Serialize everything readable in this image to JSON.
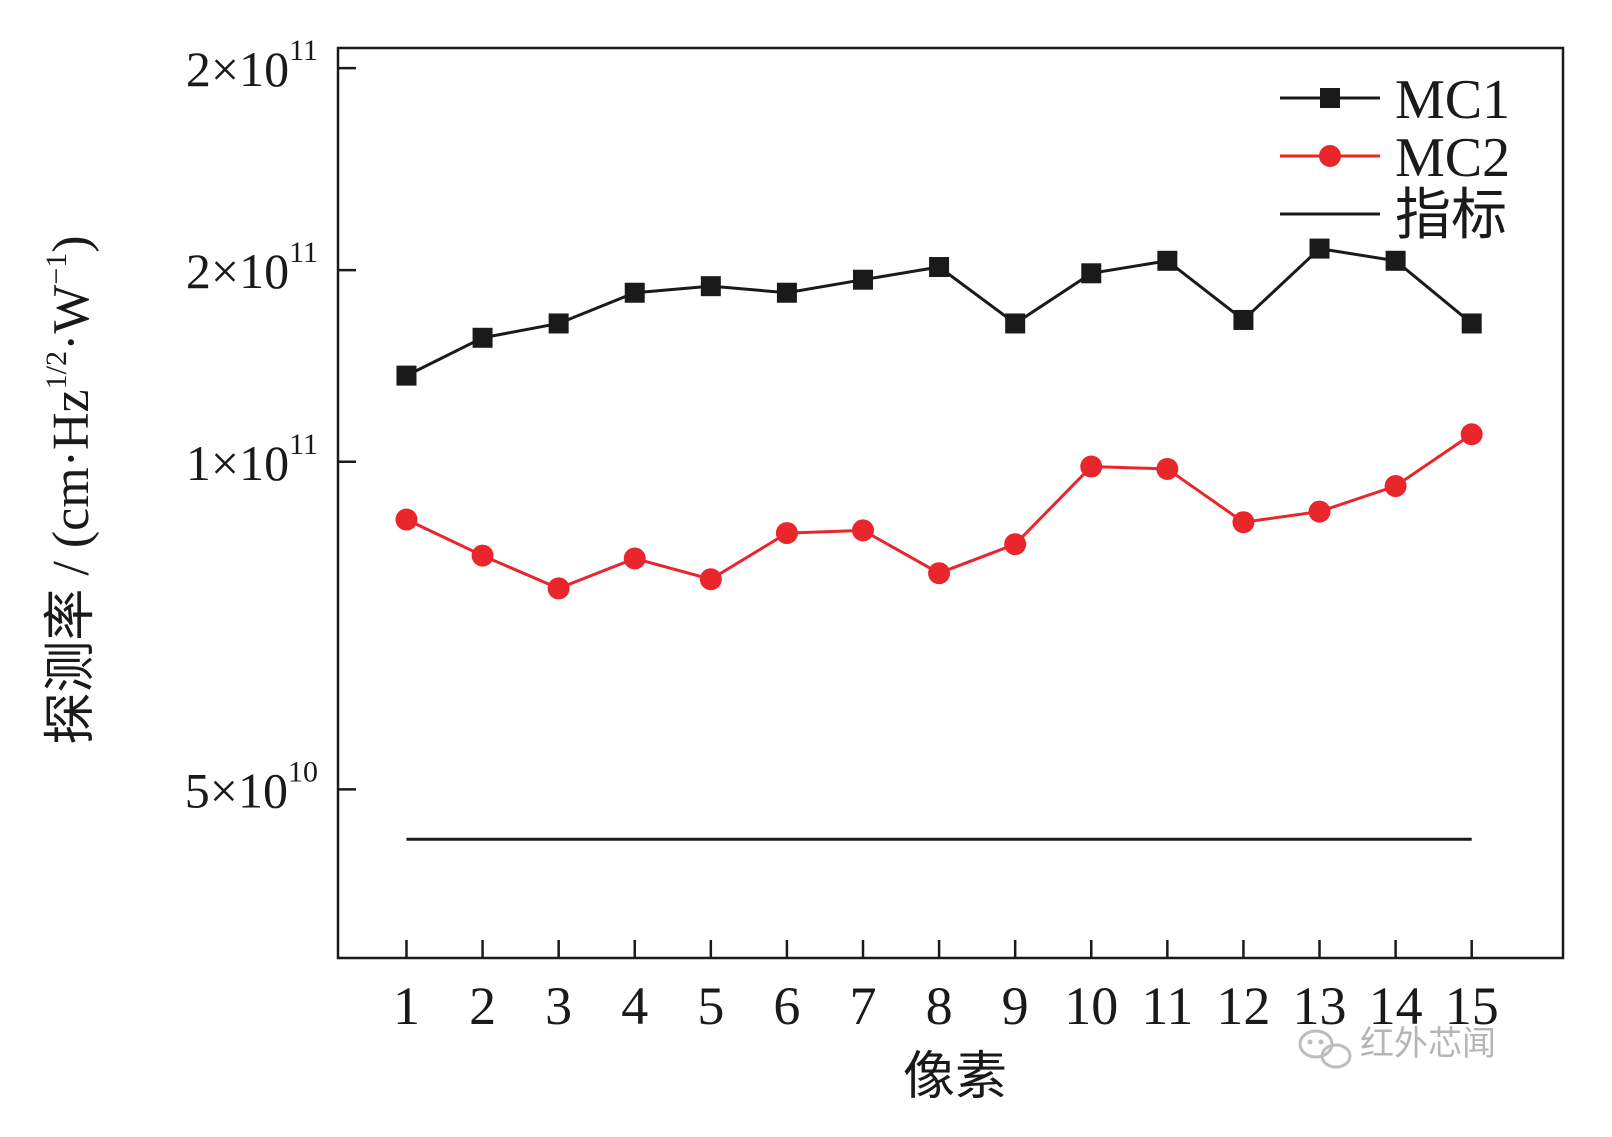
{
  "chart_data": {
    "type": "line",
    "xlabel": "像素",
    "ylabel": {
      "prefix": "探测率 / (cm·Hz",
      "sup1": "1/2",
      "mid": "·W",
      "sup2": "−1",
      "suffix": ")"
    },
    "y_scale": "log",
    "ylim": [
      35000000000,
      240000000000
    ],
    "xlim": [
      0.1,
      16.2
    ],
    "x": [
      1,
      2,
      3,
      4,
      5,
      6,
      7,
      8,
      9,
      10,
      11,
      12,
      13,
      14,
      15
    ],
    "y_ticks": [
      {
        "value": 50000000000,
        "mantissa": "5",
        "exponent": "10"
      },
      {
        "value": 100000000000,
        "mantissa": "1",
        "exponent": "11"
      },
      {
        "value": 150000000000,
        "mantissa": "2",
        "exponent": "11"
      },
      {
        "value": 230000000000,
        "mantissa": "2",
        "exponent": "11"
      }
    ],
    "series": [
      {
        "name": "MC1",
        "color": "#1a1a1a",
        "marker": "square",
        "values": [
          120000000000,
          130000000000,
          134000000000,
          143000000000,
          145000000000,
          143000000000,
          147000000000,
          151000000000,
          134000000000,
          149000000000,
          153000000000,
          135000000000,
          157000000000,
          153000000000,
          134000000000
        ]
      },
      {
        "name": "MC2",
        "color": "#e8262b",
        "marker": "circle",
        "values": [
          88500000000,
          82000000000,
          76500000000,
          81500000000,
          78000000000,
          86000000000,
          86500000000,
          79000000000,
          84000000000,
          99000000000,
          98500000000,
          88000000000,
          90000000000,
          95000000000,
          106000000000
        ]
      },
      {
        "name": "指标",
        "color": "#1a1a1a",
        "marker": "none",
        "values": [
          45000000000,
          45000000000,
          45000000000,
          45000000000,
          45000000000,
          45000000000,
          45000000000,
          45000000000,
          45000000000,
          45000000000,
          45000000000,
          45000000000,
          45000000000,
          45000000000,
          45000000000
        ]
      }
    ],
    "legend": {
      "position": "top-right",
      "labels": [
        "MC1",
        "MC2",
        "指标"
      ]
    },
    "grid": false
  },
  "watermark": {
    "icon": "wechat-icon",
    "text": "红外芯闻"
  },
  "times_sign": "×"
}
